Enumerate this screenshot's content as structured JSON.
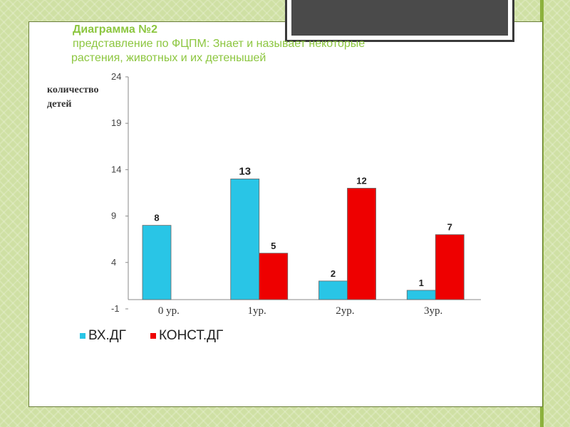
{
  "heading": {
    "line1": "Диаграмма  №2",
    "line2": " представление по ФЦПМ:  Знает и называет некоторые",
    "line3": "растения, животных и их детенышей"
  },
  "colors": {
    "series1": "#29c5e6",
    "series2": "#ee0000",
    "heading": "#8cc63f",
    "background": "#cfe0a4"
  },
  "chart_data": {
    "type": "bar",
    "title": "",
    "ylabel": "количество детей",
    "xlabel": "",
    "categories": [
      "0 ур.",
      "1ур.",
      "2ур.",
      "3ур."
    ],
    "yticks": [
      -1,
      4,
      9,
      14,
      19,
      24
    ],
    "ylim": [
      -1,
      24
    ],
    "grid": false,
    "legend_position": "bottom-left",
    "series": [
      {
        "name": "ВХ.ДГ",
        "values": [
          8,
          13,
          2,
          1
        ],
        "labels": [
          "8",
          "13",
          "2",
          "1"
        ]
      },
      {
        "name": "КОНСТ.ДГ",
        "values": [
          null,
          5,
          12,
          7
        ],
        "labels": [
          "",
          "5",
          "12",
          "7"
        ]
      }
    ]
  }
}
